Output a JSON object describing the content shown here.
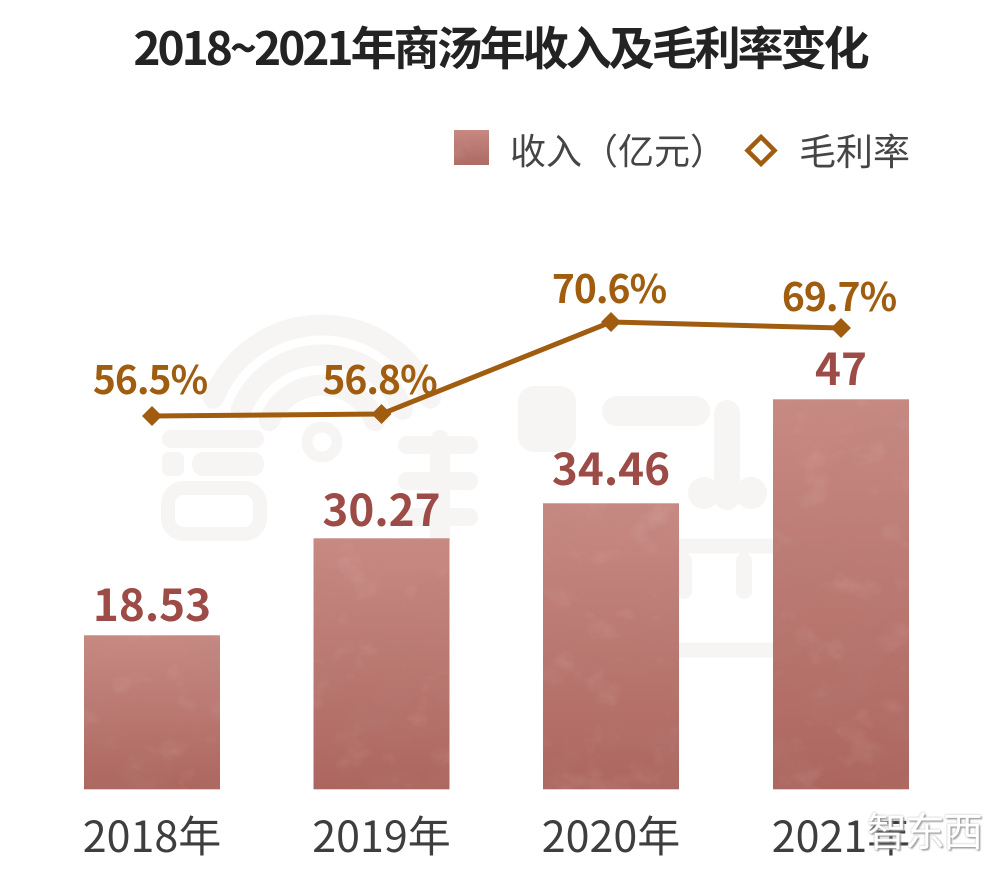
{
  "title": "2018~2021年商汤年收入及毛利率变化",
  "legend": {
    "revenue_label": "收入（亿元）",
    "margin_label": "毛利率"
  },
  "watermark": {
    "brand_text": "智东西"
  },
  "colors": {
    "bar_fill_top": "#c78a83",
    "bar_fill_bottom": "#ac665f",
    "bar_value_label": "#9c4b47",
    "line_and_pct": "#a05d10",
    "title_text": "#232323",
    "axis_text": "#3e3e3e",
    "legend_text": "#454545",
    "watermark_gray": "#f6f5f3",
    "background": "#ffffff"
  },
  "chart_data": {
    "type": "bar+line",
    "categories": [
      "2018年",
      "2019年",
      "2020年",
      "2021年"
    ],
    "series": [
      {
        "name": "收入（亿元）",
        "type": "bar",
        "values": [
          18.53,
          30.27,
          34.46,
          47
        ],
        "value_labels": [
          "18.53",
          "30.27",
          "34.46",
          "47"
        ]
      },
      {
        "name": "毛利率",
        "type": "line",
        "values": [
          56.5,
          56.8,
          70.6,
          69.7
        ],
        "value_labels": [
          "56.5%",
          "56.8%",
          "70.6%",
          "69.7%"
        ]
      }
    ],
    "legend_position": "top",
    "grid": false,
    "y_axis_visible": false
  }
}
